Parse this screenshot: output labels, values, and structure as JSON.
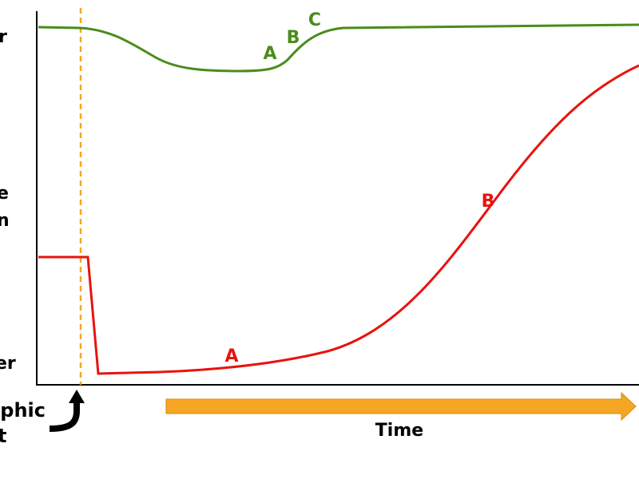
{
  "y_axis_labels": {
    "top": "r",
    "middle": [
      "e",
      "n"
    ],
    "bottom": "er"
  },
  "event_label": [
    "phic",
    "t"
  ],
  "time_label": "Time",
  "green_labels": [
    "A",
    "B",
    "C"
  ],
  "red_labels": [
    "A",
    "B"
  ]
}
